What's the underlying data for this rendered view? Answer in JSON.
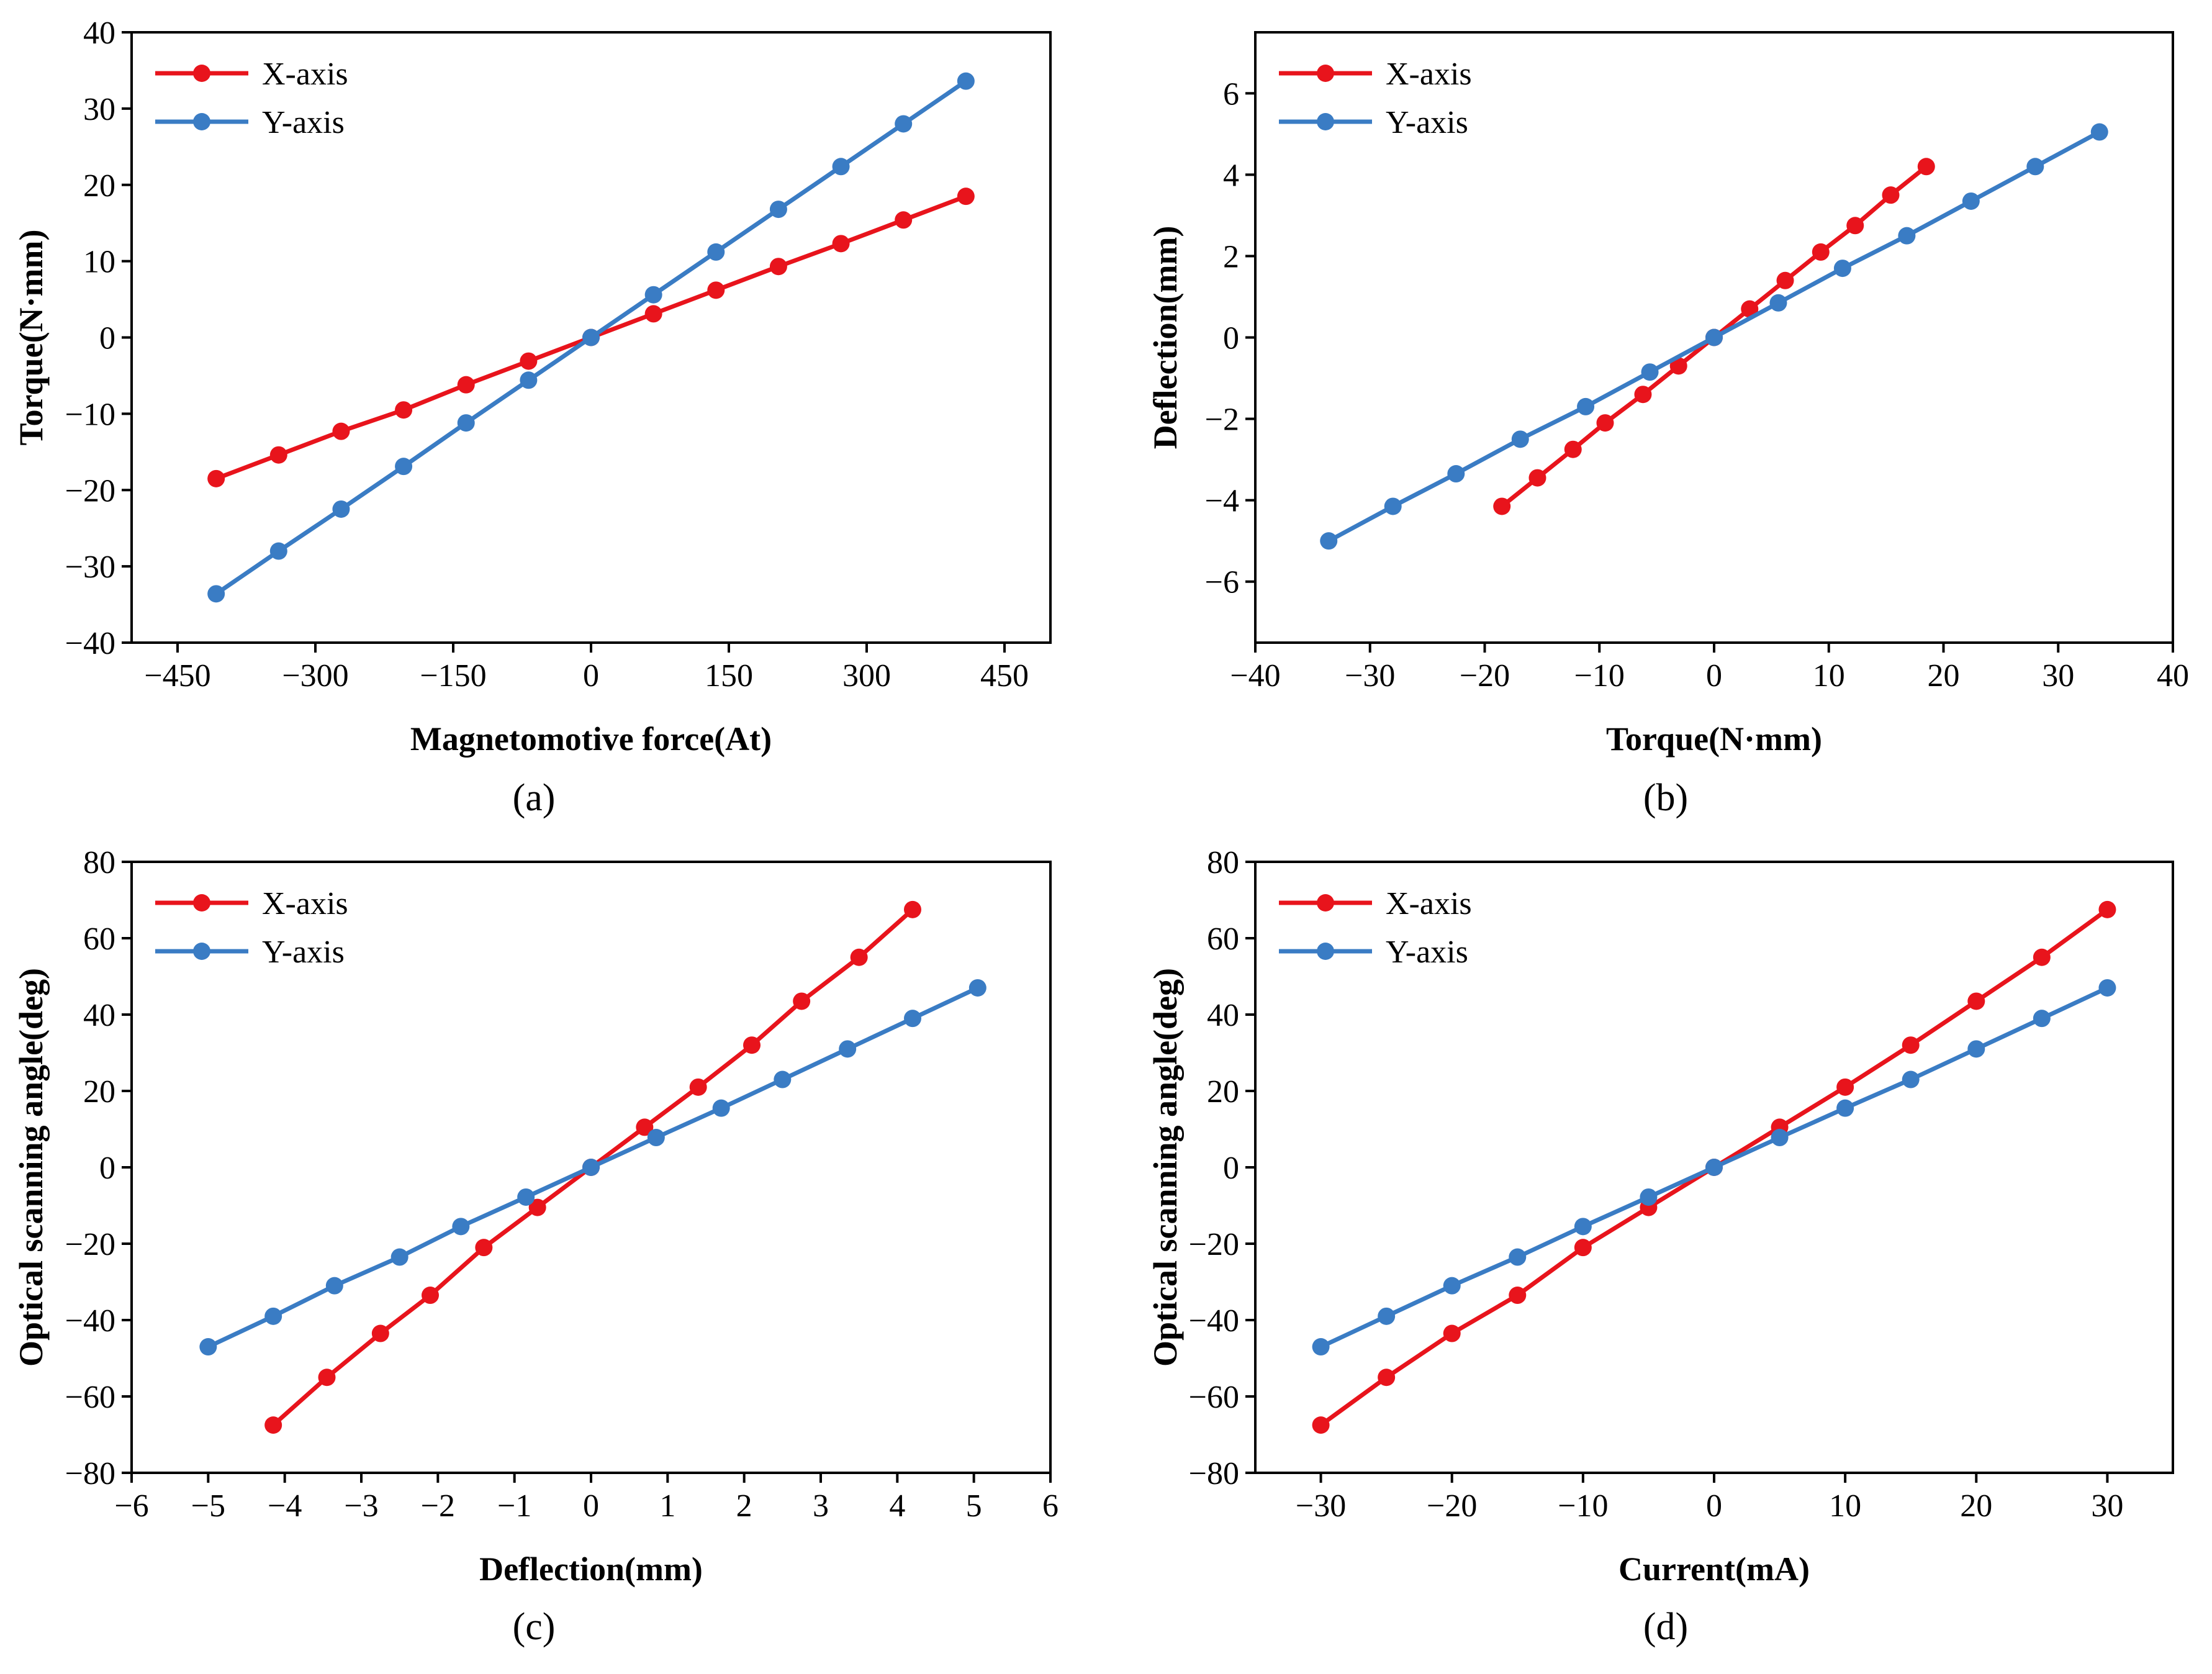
{
  "figure": {
    "panels": [
      {
        "caption": "(a)",
        "letter": "a"
      },
      {
        "caption": "(b)",
        "letter": "b"
      },
      {
        "caption": "(c)",
        "letter": "c"
      },
      {
        "caption": "(d)",
        "letter": "d"
      }
    ]
  },
  "chart_data": [
    {
      "type": "line",
      "panel": "(a)",
      "title": "",
      "xlabel": "Magnetomotive force(At)",
      "ylabel": "Torque(N·mm)",
      "xlim": [
        -500,
        500
      ],
      "ylim": [
        -40,
        40
      ],
      "xticks": [
        -450,
        -300,
        -150,
        0,
        150,
        300,
        450
      ],
      "xtick_labels": [
        "−450",
        "−300",
        "−150",
        "0",
        "150",
        "300",
        "450"
      ],
      "yticks": [
        -40,
        -30,
        -20,
        -10,
        0,
        10,
        20,
        30,
        40
      ],
      "ytick_labels": [
        "−40",
        "−30",
        "−20",
        "−10",
        "0",
        "10",
        "20",
        "30",
        "40"
      ],
      "legend_position": "top-left",
      "series": [
        {
          "name": "X-axis",
          "color": "#e8141c",
          "x": [
            -408,
            -340,
            -272,
            -204,
            -136,
            -68,
            0,
            68,
            136,
            204,
            272,
            340,
            408
          ],
          "y": [
            -18.5,
            -15.4,
            -12.3,
            -9.5,
            -6.2,
            -3.1,
            0,
            3.1,
            6.2,
            9.3,
            12.3,
            15.4,
            18.5
          ]
        },
        {
          "name": "Y-axis",
          "color": "#3a7cc4",
          "x": [
            -408,
            -340,
            -272,
            -204,
            -136,
            -68,
            0,
            68,
            136,
            204,
            272,
            340,
            408
          ],
          "y": [
            -33.6,
            -28.0,
            -22.5,
            -16.9,
            -11.2,
            -5.6,
            0,
            5.6,
            11.2,
            16.8,
            22.4,
            28.0,
            33.6
          ]
        }
      ]
    },
    {
      "type": "line",
      "panel": "(b)",
      "title": "",
      "xlabel": "Torque(N·mm)",
      "ylabel": "Deflection(mm)",
      "xlim": [
        -40,
        40
      ],
      "ylim": [
        -7.5,
        7.5
      ],
      "xticks": [
        -40,
        -30,
        -20,
        -10,
        0,
        10,
        20,
        30,
        40
      ],
      "xtick_labels": [
        "−40",
        "−30",
        "−20",
        "−10",
        "0",
        "10",
        "20",
        "30",
        "40"
      ],
      "yticks": [
        -6,
        -4,
        -2,
        0,
        2,
        4,
        6
      ],
      "ytick_labels": [
        "−6",
        "−4",
        "−2",
        "0",
        "2",
        "4",
        "6"
      ],
      "legend_position": "top-left",
      "series": [
        {
          "name": "X-axis",
          "color": "#e8141c",
          "x": [
            -18.5,
            -15.4,
            -12.3,
            -9.5,
            -6.2,
            -3.1,
            0,
            3.1,
            6.2,
            9.3,
            12.3,
            15.4,
            18.5
          ],
          "y": [
            -4.15,
            -3.45,
            -2.75,
            -2.1,
            -1.4,
            -0.7,
            0,
            0.7,
            1.4,
            2.1,
            2.75,
            3.5,
            4.2
          ]
        },
        {
          "name": "Y-axis",
          "color": "#3a7cc4",
          "x": [
            -33.6,
            -28.0,
            -22.5,
            -16.9,
            -11.2,
            -5.6,
            0,
            5.6,
            11.2,
            16.8,
            22.4,
            28.0,
            33.6
          ],
          "y": [
            -5.0,
            -4.15,
            -3.35,
            -2.5,
            -1.7,
            -0.85,
            0,
            0.85,
            1.7,
            2.5,
            3.35,
            4.2,
            5.05
          ]
        }
      ]
    },
    {
      "type": "line",
      "panel": "(c)",
      "title": "",
      "xlabel": "Deflection(mm)",
      "ylabel": "Optical scanning angle(deg)",
      "xlim": [
        -6,
        6
      ],
      "ylim": [
        -80,
        80
      ],
      "xticks": [
        -6,
        -5,
        -4,
        -3,
        -2,
        -1,
        0,
        1,
        2,
        3,
        4,
        5,
        6
      ],
      "xtick_labels": [
        "−6",
        "−5",
        "−4",
        "−3",
        "−2",
        "−1",
        "0",
        "1",
        "2",
        "3",
        "4",
        "5",
        "6"
      ],
      "yticks": [
        -80,
        -60,
        -40,
        -20,
        0,
        20,
        40,
        60,
        80
      ],
      "ytick_labels": [
        "−80",
        "−60",
        "−40",
        "−20",
        "0",
        "20",
        "40",
        "60",
        "80"
      ],
      "legend_position": "top-left",
      "series": [
        {
          "name": "X-axis",
          "color": "#e8141c",
          "x": [
            -4.15,
            -3.45,
            -2.75,
            -2.1,
            -1.4,
            -0.7,
            0,
            0.7,
            1.4,
            2.1,
            2.75,
            3.5,
            4.2
          ],
          "y": [
            -67.5,
            -55.0,
            -43.5,
            -33.5,
            -21.0,
            -10.5,
            0,
            10.5,
            21.0,
            32.0,
            43.5,
            55.0,
            67.5
          ]
        },
        {
          "name": "Y-axis",
          "color": "#3a7cc4",
          "x": [
            -5.0,
            -4.15,
            -3.35,
            -2.5,
            -1.7,
            -0.85,
            0,
            0.85,
            1.7,
            2.5,
            3.35,
            4.2,
            5.05
          ],
          "y": [
            -47.0,
            -39.0,
            -31.0,
            -23.5,
            -15.5,
            -7.8,
            0,
            7.8,
            15.5,
            23.0,
            31.0,
            39.0,
            47.0
          ]
        }
      ]
    },
    {
      "type": "line",
      "panel": "(d)",
      "title": "",
      "xlabel": "Current(mA)",
      "ylabel": "Optical scanning angle(deg)",
      "xlim": [
        -35,
        35
      ],
      "ylim": [
        -80,
        80
      ],
      "xticks": [
        -30,
        -20,
        -10,
        0,
        10,
        20,
        30
      ],
      "xtick_labels": [
        "−30",
        "−20",
        "−10",
        "0",
        "10",
        "20",
        "30"
      ],
      "yticks": [
        -80,
        -60,
        -40,
        -20,
        0,
        20,
        40,
        60,
        80
      ],
      "ytick_labels": [
        "−80",
        "−60",
        "−40",
        "−20",
        "0",
        "20",
        "40",
        "60",
        "80"
      ],
      "legend_position": "top-left",
      "series": [
        {
          "name": "X-axis",
          "color": "#e8141c",
          "x": [
            -30,
            -25,
            -20,
            -15,
            -10,
            -5,
            0,
            5,
            10,
            15,
            20,
            25,
            30
          ],
          "y": [
            -67.5,
            -55.0,
            -43.5,
            -33.5,
            -21.0,
            -10.5,
            0,
            10.5,
            21.0,
            32.0,
            43.5,
            55.0,
            67.5
          ]
        },
        {
          "name": "Y-axis",
          "color": "#3a7cc4",
          "x": [
            -30,
            -25,
            -20,
            -15,
            -10,
            -5,
            0,
            5,
            10,
            15,
            20,
            25,
            30
          ],
          "y": [
            -47.0,
            -39.0,
            -31.0,
            -23.5,
            -15.5,
            -7.8,
            0,
            7.8,
            15.5,
            23.0,
            31.0,
            39.0,
            47.0
          ]
        }
      ]
    }
  ]
}
